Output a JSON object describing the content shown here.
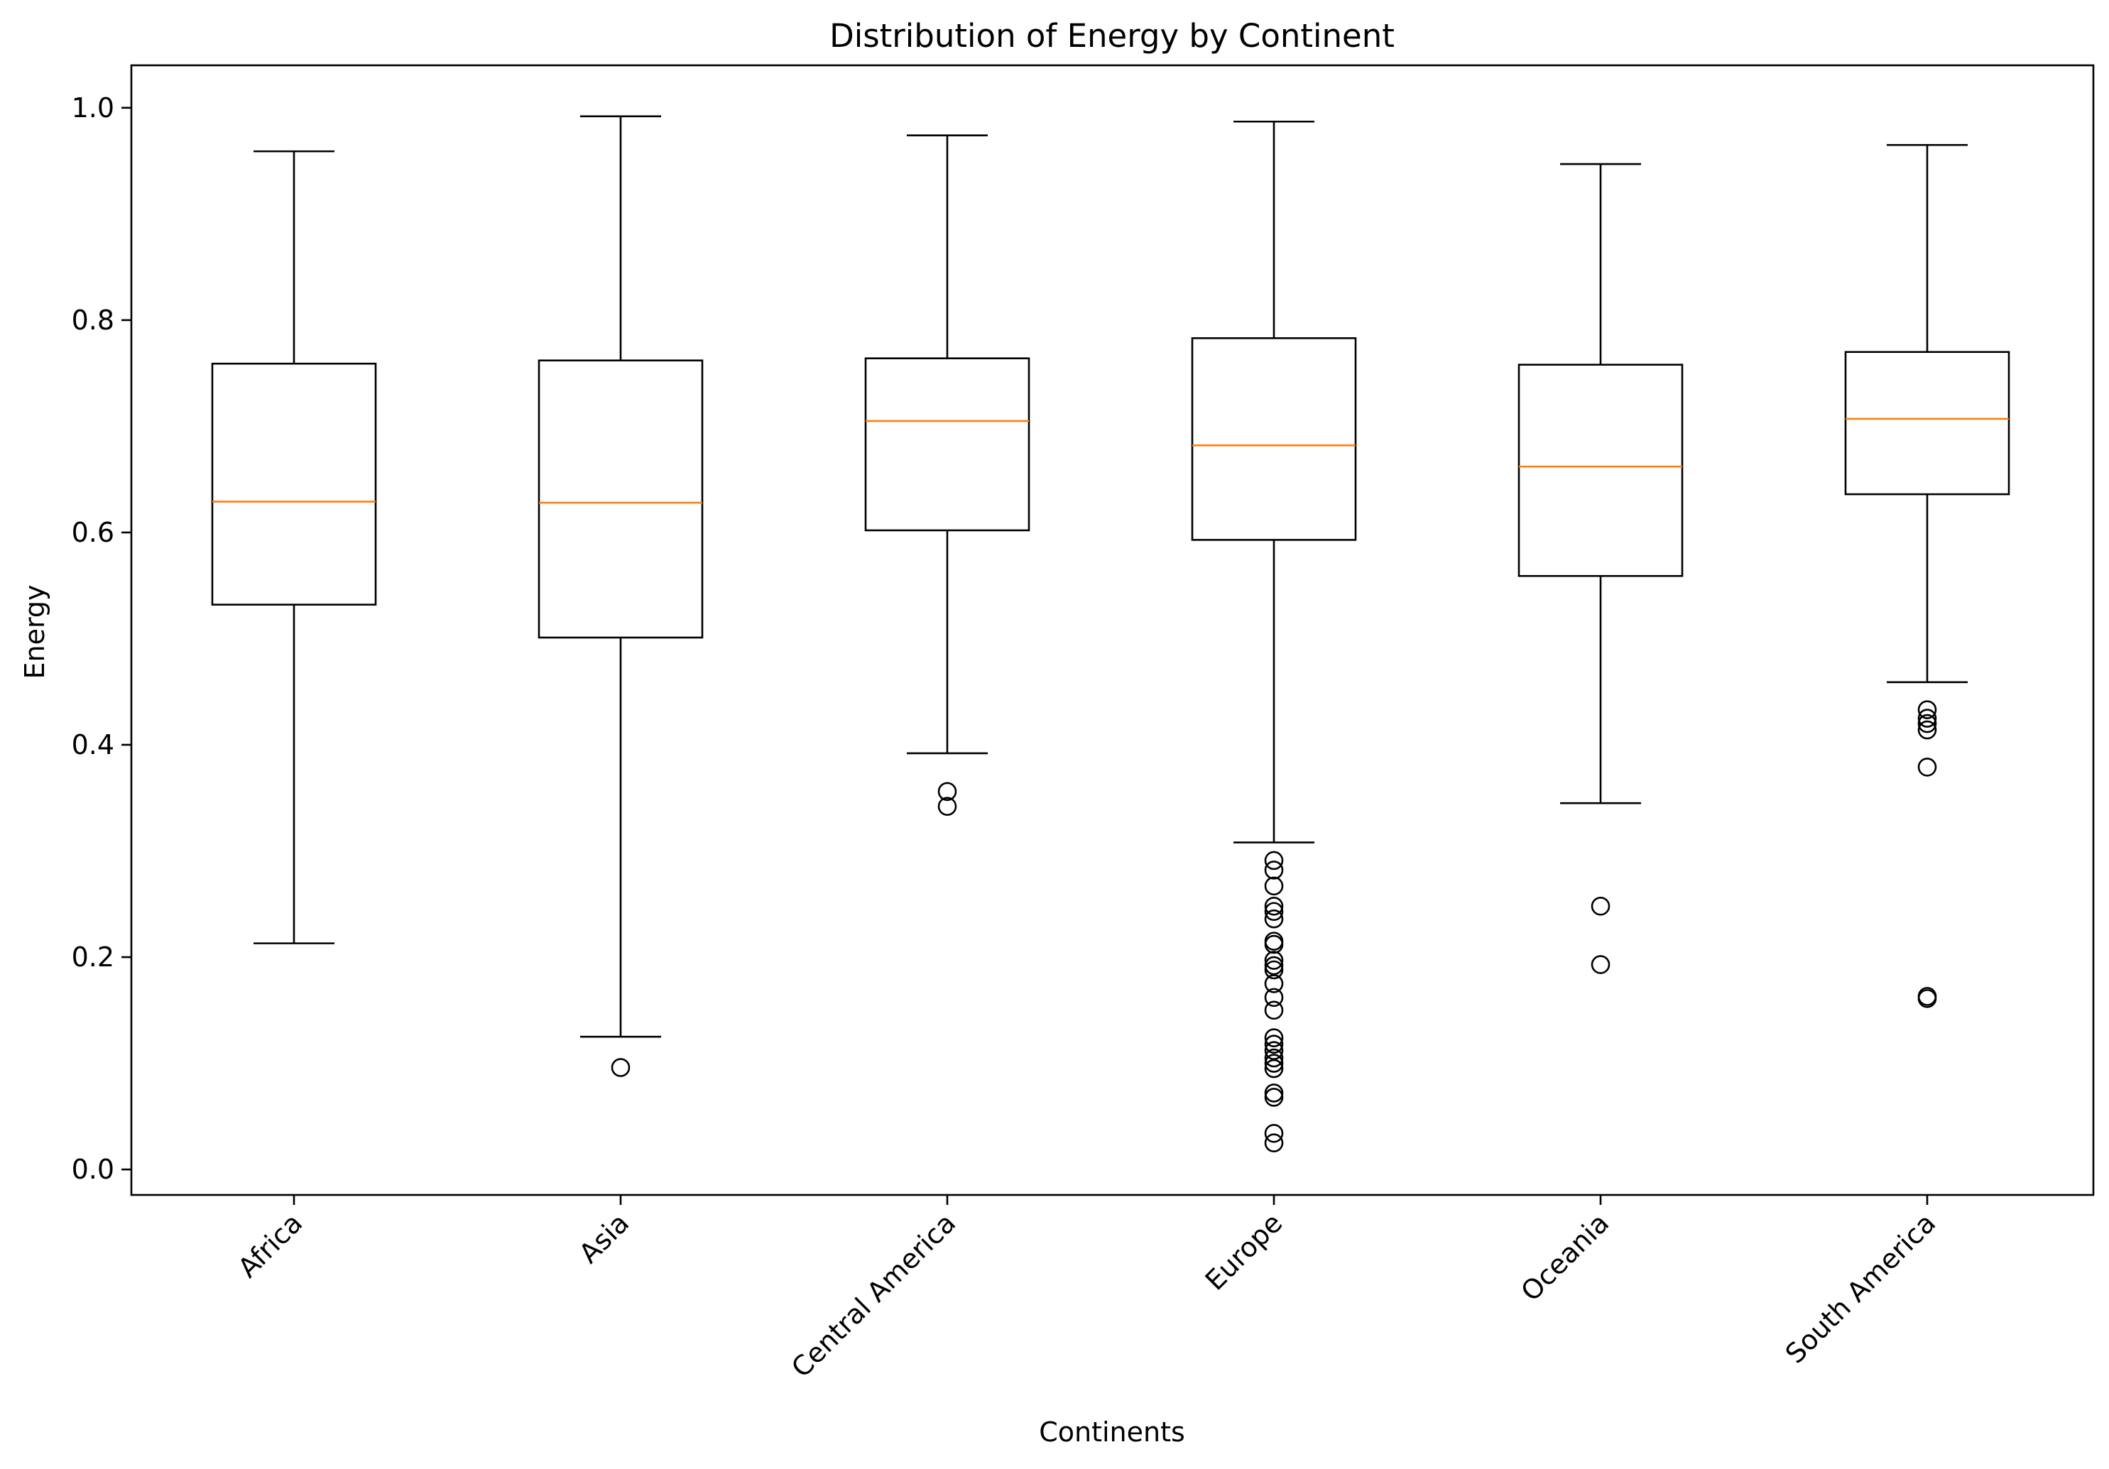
{
  "chart_data": {
    "type": "boxplot",
    "title": "Distribution of Energy by Continent",
    "xlabel": "Continents",
    "ylabel": "Energy",
    "ylim": [
      -0.024,
      1.04
    ],
    "yticks": [
      0.0,
      0.2,
      0.4,
      0.6,
      0.8,
      1.0
    ],
    "ytick_labels": [
      "0.0",
      "0.2",
      "0.4",
      "0.6",
      "0.8",
      "1.0"
    ],
    "grid": false,
    "box_color": "#000000",
    "median_color": "#ff7f0e",
    "categories": [
      "Africa",
      "Asia",
      "Central America",
      "Europe",
      "Oceania",
      "South America"
    ],
    "boxes": [
      {
        "category": "Africa",
        "whisker_low": 0.213,
        "q1": 0.532,
        "median": 0.629,
        "q3": 0.759,
        "whisker_high": 0.959,
        "outliers": []
      },
      {
        "category": "Asia",
        "whisker_low": 0.125,
        "q1": 0.501,
        "median": 0.628,
        "q3": 0.762,
        "whisker_high": 0.992,
        "outliers": [
          0.096
        ]
      },
      {
        "category": "Central America",
        "whisker_low": 0.392,
        "q1": 0.602,
        "median": 0.705,
        "q3": 0.764,
        "whisker_high": 0.974,
        "outliers": [
          0.356,
          0.342
        ]
      },
      {
        "category": "Europe",
        "whisker_low": 0.308,
        "q1": 0.593,
        "median": 0.682,
        "q3": 0.783,
        "whisker_high": 0.987,
        "outliers": [
          0.291,
          0.282,
          0.267,
          0.248,
          0.243,
          0.236,
          0.215,
          0.212,
          0.197,
          0.192,
          0.188,
          0.175,
          0.162,
          0.15,
          0.124,
          0.118,
          0.112,
          0.105,
          0.1,
          0.095,
          0.072,
          0.068,
          0.034,
          0.025
        ]
      },
      {
        "category": "Oceania",
        "whisker_low": 0.345,
        "q1": 0.559,
        "median": 0.662,
        "q3": 0.758,
        "whisker_high": 0.947,
        "outliers": [
          0.248,
          0.193
        ]
      },
      {
        "category": "South America",
        "whisker_low": 0.459,
        "q1": 0.636,
        "median": 0.707,
        "q3": 0.77,
        "whisker_high": 0.965,
        "outliers": [
          0.433,
          0.425,
          0.42,
          0.414,
          0.379,
          0.163,
          0.161
        ]
      }
    ]
  }
}
